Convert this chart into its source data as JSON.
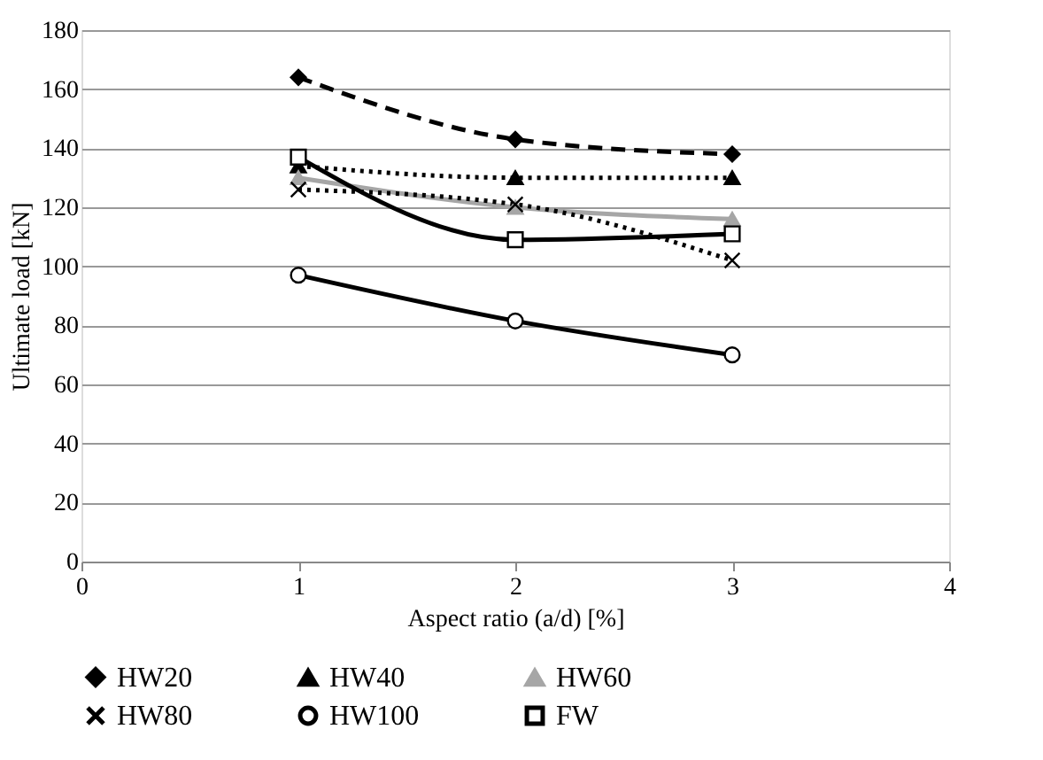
{
  "chart_data": {
    "type": "line",
    "xlabel": "Aspect ratio (a/d) [%]",
    "ylabel": "Ultimate load [kN]",
    "x": [
      1,
      2,
      3
    ],
    "xlim": [
      0,
      4
    ],
    "xticks": [
      0,
      1,
      2,
      3,
      4
    ],
    "ylim": [
      0,
      180
    ],
    "yticks": [
      0,
      20,
      40,
      60,
      80,
      100,
      120,
      140,
      160,
      180
    ],
    "grid": "y",
    "legend": "bottom",
    "series": [
      {
        "name": "HW20",
        "color": "#000000",
        "values": [
          164,
          143,
          138
        ],
        "marker": "diamond",
        "line_style": "dashed"
      },
      {
        "name": "HW40",
        "color": "#000000",
        "values": [
          134,
          130,
          130
        ],
        "marker": "triangle",
        "line_style": "dotted"
      },
      {
        "name": "HW60",
        "color": "#a6a6a6",
        "values": [
          130,
          120,
          116
        ],
        "marker": "triangle",
        "line_style": "solid"
      },
      {
        "name": "HW80",
        "color": "#000000",
        "values": [
          126,
          121,
          102
        ],
        "marker": "cross",
        "line_style": "dotted"
      },
      {
        "name": "HW100",
        "color": "#000000",
        "values": [
          97,
          81.5,
          70
        ],
        "marker": "circle",
        "line_style": "solid"
      },
      {
        "name": "FW",
        "color": "#000000",
        "values": [
          137,
          109,
          111
        ],
        "marker": "square",
        "line_style": "solid"
      }
    ]
  }
}
